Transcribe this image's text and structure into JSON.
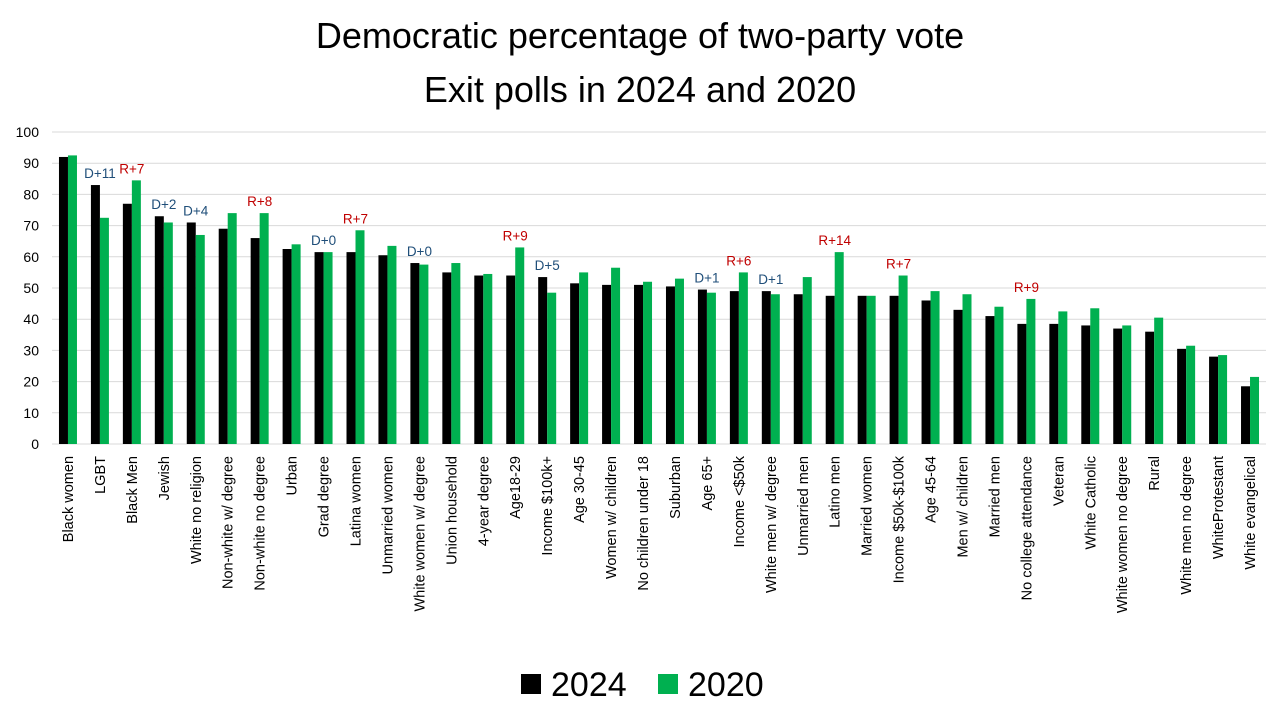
{
  "chart_data": {
    "type": "bar",
    "title_lines": [
      "Democratic percentage of two-party vote",
      "Exit polls in 2024 and 2020"
    ],
    "xlabel": "",
    "ylabel": "",
    "ylim": [
      0,
      100
    ],
    "yticks": [
      "0",
      "10",
      "20",
      "30",
      "40",
      "50",
      "60",
      "70",
      "80",
      "90",
      "100"
    ],
    "categories": [
      "Black women",
      "LGBT",
      "Black Men",
      "Jewish",
      "White no religion",
      "Non-white w/ degree",
      "Non-white no degree",
      "Urban",
      "Grad degree",
      "Latina women",
      "Unmarried women",
      "White women w/ degree",
      "Union household",
      "4-year degree",
      "Age18-29",
      "Income $100k+",
      "Age 30-45",
      "Women w/ children",
      "No children under 18",
      "Suburban",
      "Age 65+",
      "Income <$50k",
      "White men w/ degree",
      "Unmarried men",
      "Latino men",
      "Married women",
      "Income $50k-$100k",
      "Age 45-64",
      "Men w/ children",
      "Married men",
      "No college attendance",
      "Veteran",
      "White Catholic",
      "White women no degree",
      "Rural",
      "White men no degree",
      "WhiteProtestant",
      "White evangelical"
    ],
    "series": [
      {
        "name": "2024",
        "color": "#000000",
        "values": [
          92,
          83,
          77,
          73,
          71,
          69,
          66,
          62.5,
          61.5,
          61.5,
          60.5,
          58,
          55,
          54,
          54,
          53.5,
          51.5,
          51,
          51,
          50.5,
          49.5,
          49,
          49,
          48,
          47.5,
          47.5,
          47.5,
          46,
          43,
          41,
          38.5,
          38.5,
          38,
          37,
          36,
          30.5,
          28,
          18.5
        ]
      },
      {
        "name": "2020",
        "color": "#00b050",
        "values": [
          92.5,
          72.5,
          84.5,
          71,
          67,
          74,
          74,
          64,
          61.5,
          68.5,
          63.5,
          57.5,
          58,
          54.5,
          63,
          48.5,
          55,
          56.5,
          52,
          53,
          48.5,
          55,
          48,
          53.5,
          61.5,
          47.5,
          54,
          49,
          48,
          44,
          46.5,
          42.5,
          43.5,
          38,
          40.5,
          31.5,
          28.5,
          21.5
        ]
      }
    ],
    "annotations": [
      {
        "category": "LGBT",
        "text": "D+11",
        "party": "D"
      },
      {
        "category": "Black Men",
        "text": "R+7",
        "party": "R"
      },
      {
        "category": "Jewish",
        "text": "D+2",
        "party": "D"
      },
      {
        "category": "White no religion",
        "text": "D+4",
        "party": "D"
      },
      {
        "category": "Non-white no degree",
        "text": "R+8",
        "party": "R"
      },
      {
        "category": "Grad degree",
        "text": "D+0",
        "party": "D"
      },
      {
        "category": "Latina women",
        "text": "R+7",
        "party": "R"
      },
      {
        "category": "White women w/ degree",
        "text": "D+0",
        "party": "D"
      },
      {
        "category": "Age18-29",
        "text": "R+9",
        "party": "R"
      },
      {
        "category": "Income $100k+",
        "text": "D+5",
        "party": "D"
      },
      {
        "category": "Age 65+",
        "text": "D+1",
        "party": "D"
      },
      {
        "category": "Income <$50k",
        "text": "R+6",
        "party": "R"
      },
      {
        "category": "White men w/ degree",
        "text": "D+1",
        "party": "D"
      },
      {
        "category": "Latino men",
        "text": "R+14",
        "party": "R"
      },
      {
        "category": "Income $50k-$100k",
        "text": "R+7",
        "party": "R"
      },
      {
        "category": "No college attendance",
        "text": "R+9",
        "party": "R"
      }
    ],
    "annotation_colors": {
      "D": "#1f4e79",
      "R": "#c00000"
    },
    "legend": [
      "2024",
      "2020"
    ],
    "legend_position": "bottom-center",
    "grid": true
  }
}
